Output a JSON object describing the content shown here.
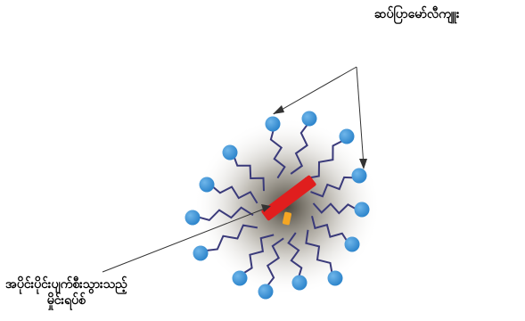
{
  "labels": {
    "micelle_label": "ဆပ်ပြာမော်လီကျူး",
    "broken_dna_line1": "အပိုင်းပိုင်းပျက်စီးသွားသည့်",
    "broken_dna_line2": "မှိုင်းရပ်စ်"
  },
  "colors": {
    "head": "#2f86cc",
    "head_highlight": "#6fb6ea",
    "tail": "#3a3a7a",
    "fragment_red": "#e01e1e",
    "fragment_orange": "#f5a623",
    "arrow": "#333333"
  }
}
